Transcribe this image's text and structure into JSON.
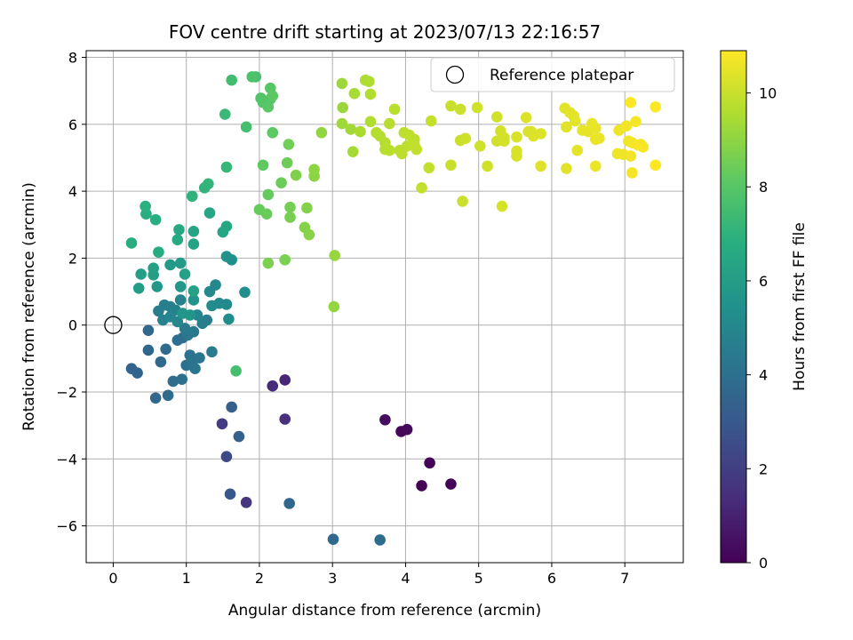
{
  "chart_data": {
    "type": "scatter",
    "title": "FOV centre drift starting at 2023/07/13 22:16:57",
    "xlabel": "Angular distance from reference (arcmin)",
    "ylabel": "Rotation from reference (arcmin)",
    "xlim": [
      -0.37,
      7.8
    ],
    "ylim": [
      -7.1,
      8.2
    ],
    "xticks": [
      0,
      1,
      2,
      3,
      4,
      5,
      6,
      7
    ],
    "yticks": [
      -6,
      -4,
      -2,
      0,
      2,
      4,
      6,
      8
    ],
    "grid": true,
    "legend": {
      "placement": "top-right",
      "entries": [
        "Reference platepar"
      ]
    },
    "reference_point": {
      "x": 0,
      "y": 0
    },
    "colorbar": {
      "label": "Hours from first FF file",
      "range": [
        0,
        10.9
      ],
      "ticks": [
        0,
        2,
        4,
        6,
        8,
        10
      ],
      "colormap": "viridis"
    },
    "points": [
      {
        "x": 4.22,
        "y": -4.8,
        "c": 0.0
      },
      {
        "x": 4.62,
        "y": -4.75,
        "c": 0.05
      },
      {
        "x": 4.33,
        "y": -4.12,
        "c": 0.1
      },
      {
        "x": 3.94,
        "y": -3.18,
        "c": 0.2
      },
      {
        "x": 4.02,
        "y": -3.12,
        "c": 0.25
      },
      {
        "x": 3.72,
        "y": -2.83,
        "c": 0.35
      },
      {
        "x": 2.35,
        "y": -1.64,
        "c": 1.2
      },
      {
        "x": 2.18,
        "y": -1.82,
        "c": 1.3
      },
      {
        "x": 2.35,
        "y": -2.81,
        "c": 1.5
      },
      {
        "x": 1.82,
        "y": -5.3,
        "c": 1.7
      },
      {
        "x": 1.49,
        "y": -2.95,
        "c": 1.9
      },
      {
        "x": 1.55,
        "y": -3.93,
        "c": 2.4
      },
      {
        "x": 1.6,
        "y": -5.05,
        "c": 3.0
      },
      {
        "x": 1.62,
        "y": -2.45,
        "c": 3.3
      },
      {
        "x": 1.72,
        "y": -3.33,
        "c": 3.4
      },
      {
        "x": 2.41,
        "y": -5.33,
        "c": 3.6
      },
      {
        "x": 3.01,
        "y": -6.4,
        "c": 3.7
      },
      {
        "x": 3.65,
        "y": -6.42,
        "c": 3.8
      },
      {
        "x": 0.25,
        "y": -1.3,
        "c": 3.5
      },
      {
        "x": 0.33,
        "y": -1.43,
        "c": 3.55
      },
      {
        "x": 0.48,
        "y": -0.75,
        "c": 3.6
      },
      {
        "x": 0.48,
        "y": -0.16,
        "c": 3.6
      },
      {
        "x": 0.58,
        "y": -2.18,
        "c": 3.65
      },
      {
        "x": 0.65,
        "y": -1.1,
        "c": 3.7
      },
      {
        "x": 0.72,
        "y": -0.72,
        "c": 3.75
      },
      {
        "x": 0.75,
        "y": -2.1,
        "c": 3.8
      },
      {
        "x": 0.82,
        "y": -1.68,
        "c": 3.85
      },
      {
        "x": 0.88,
        "y": -0.45,
        "c": 3.9
      },
      {
        "x": 0.95,
        "y": -0.38,
        "c": 3.95
      },
      {
        "x": 0.94,
        "y": -1.62,
        "c": 4.0
      },
      {
        "x": 1.0,
        "y": -1.2,
        "c": 4.05
      },
      {
        "x": 1.05,
        "y": -0.9,
        "c": 4.1
      },
      {
        "x": 1.08,
        "y": -1.15,
        "c": 4.15
      },
      {
        "x": 1.12,
        "y": -1.3,
        "c": 4.2
      },
      {
        "x": 1.18,
        "y": -0.98,
        "c": 4.25
      },
      {
        "x": 1.02,
        "y": -0.3,
        "c": 4.3
      },
      {
        "x": 1.1,
        "y": -0.2,
        "c": 4.4
      },
      {
        "x": 0.98,
        "y": -0.1,
        "c": 4.45
      },
      {
        "x": 1.35,
        "y": -0.8,
        "c": 4.5
      },
      {
        "x": 1.22,
        "y": 0.05,
        "c": 4.55
      },
      {
        "x": 1.28,
        "y": 0.15,
        "c": 4.6
      },
      {
        "x": 0.62,
        "y": 0.42,
        "c": 4.6
      },
      {
        "x": 0.7,
        "y": 0.6,
        "c": 4.65
      },
      {
        "x": 0.78,
        "y": 0.55,
        "c": 4.7
      },
      {
        "x": 0.85,
        "y": 0.45,
        "c": 4.75
      },
      {
        "x": 0.92,
        "y": 0.75,
        "c": 4.8
      },
      {
        "x": 0.68,
        "y": 0.15,
        "c": 4.85
      },
      {
        "x": 0.78,
        "y": 0.25,
        "c": 4.9
      },
      {
        "x": 0.88,
        "y": 0.1,
        "c": 4.95
      },
      {
        "x": 1.15,
        "y": 0.3,
        "c": 5.0
      },
      {
        "x": 1.32,
        "y": 1.0,
        "c": 5.05
      },
      {
        "x": 1.4,
        "y": 1.2,
        "c": 5.1
      },
      {
        "x": 1.55,
        "y": 0.62,
        "c": 5.15
      },
      {
        "x": 1.45,
        "y": 0.65,
        "c": 5.2
      },
      {
        "x": 1.35,
        "y": 0.58,
        "c": 5.25
      },
      {
        "x": 1.58,
        "y": 0.18,
        "c": 5.3
      },
      {
        "x": 1.8,
        "y": 0.98,
        "c": 5.35
      },
      {
        "x": 1.62,
        "y": 1.95,
        "c": 5.4
      },
      {
        "x": 1.55,
        "y": 2.05,
        "c": 5.5
      },
      {
        "x": 1.1,
        "y": 0.75,
        "c": 5.6
      },
      {
        "x": 1.05,
        "y": 0.3,
        "c": 5.65
      },
      {
        "x": 0.95,
        "y": 0.35,
        "c": 5.7
      },
      {
        "x": 0.92,
        "y": 1.15,
        "c": 5.75
      },
      {
        "x": 0.6,
        "y": 1.15,
        "c": 5.8
      },
      {
        "x": 0.78,
        "y": 1.8,
        "c": 5.85
      },
      {
        "x": 0.92,
        "y": 1.85,
        "c": 5.9
      },
      {
        "x": 0.35,
        "y": 1.1,
        "c": 6.0
      },
      {
        "x": 0.38,
        "y": 1.52,
        "c": 6.05
      },
      {
        "x": 0.55,
        "y": 1.5,
        "c": 6.1
      },
      {
        "x": 0.55,
        "y": 1.7,
        "c": 6.15
      },
      {
        "x": 0.98,
        "y": 1.52,
        "c": 6.2
      },
      {
        "x": 1.1,
        "y": 1.02,
        "c": 6.25
      },
      {
        "x": 1.1,
        "y": 2.42,
        "c": 6.3
      },
      {
        "x": 1.1,
        "y": 2.8,
        "c": 6.35
      },
      {
        "x": 1.32,
        "y": 3.35,
        "c": 6.4
      },
      {
        "x": 1.5,
        "y": 2.78,
        "c": 6.45
      },
      {
        "x": 1.55,
        "y": 2.95,
        "c": 6.5
      },
      {
        "x": 0.9,
        "y": 2.85,
        "c": 6.55
      },
      {
        "x": 0.88,
        "y": 2.55,
        "c": 6.6
      },
      {
        "x": 0.62,
        "y": 2.18,
        "c": 6.7
      },
      {
        "x": 0.25,
        "y": 2.45,
        "c": 6.75
      },
      {
        "x": 0.45,
        "y": 3.32,
        "c": 6.8
      },
      {
        "x": 0.58,
        "y": 3.15,
        "c": 6.85
      },
      {
        "x": 0.44,
        "y": 3.55,
        "c": 6.9
      },
      {
        "x": 1.08,
        "y": 3.85,
        "c": 7.0
      },
      {
        "x": 1.25,
        "y": 4.1,
        "c": 7.05
      },
      {
        "x": 1.3,
        "y": 4.22,
        "c": 7.1
      },
      {
        "x": 1.55,
        "y": 4.72,
        "c": 7.2
      },
      {
        "x": 1.53,
        "y": 6.3,
        "c": 7.3
      },
      {
        "x": 1.62,
        "y": 7.32,
        "c": 7.5
      },
      {
        "x": 1.68,
        "y": -1.37,
        "c": 7.6
      },
      {
        "x": 1.82,
        "y": 5.92,
        "c": 7.6
      },
      {
        "x": 1.95,
        "y": 7.42,
        "c": 7.7
      },
      {
        "x": 1.9,
        "y": 7.42,
        "c": 7.75
      },
      {
        "x": 2.02,
        "y": 6.78,
        "c": 7.85
      },
      {
        "x": 2.05,
        "y": 6.65,
        "c": 7.9
      },
      {
        "x": 2.15,
        "y": 6.75,
        "c": 7.95
      },
      {
        "x": 2.15,
        "y": 7.08,
        "c": 8.0
      },
      {
        "x": 2.12,
        "y": 6.52,
        "c": 8.05
      },
      {
        "x": 2.18,
        "y": 6.85,
        "c": 8.1
      },
      {
        "x": 2.18,
        "y": 5.75,
        "c": 8.15
      },
      {
        "x": 2.05,
        "y": 4.78,
        "c": 8.2
      },
      {
        "x": 2.12,
        "y": 3.9,
        "c": 8.25
      },
      {
        "x": 2.0,
        "y": 3.45,
        "c": 8.3
      },
      {
        "x": 2.1,
        "y": 3.32,
        "c": 8.35
      },
      {
        "x": 2.3,
        "y": 4.25,
        "c": 8.4
      },
      {
        "x": 2.38,
        "y": 4.85,
        "c": 8.45
      },
      {
        "x": 2.4,
        "y": 5.4,
        "c": 8.5
      },
      {
        "x": 2.42,
        "y": 3.52,
        "c": 8.55
      },
      {
        "x": 2.42,
        "y": 3.22,
        "c": 8.6
      },
      {
        "x": 2.35,
        "y": 1.95,
        "c": 8.65
      },
      {
        "x": 2.12,
        "y": 1.85,
        "c": 8.7
      },
      {
        "x": 2.5,
        "y": 4.48,
        "c": 8.75
      },
      {
        "x": 2.65,
        "y": 3.5,
        "c": 8.8
      },
      {
        "x": 2.62,
        "y": 2.92,
        "c": 8.85
      },
      {
        "x": 2.68,
        "y": 2.7,
        "c": 8.9
      },
      {
        "x": 2.75,
        "y": 4.45,
        "c": 8.95
      },
      {
        "x": 2.75,
        "y": 4.65,
        "c": 9.0
      },
      {
        "x": 2.85,
        "y": 5.75,
        "c": 9.05
      },
      {
        "x": 3.02,
        "y": 0.55,
        "c": 9.1
      },
      {
        "x": 3.03,
        "y": 2.08,
        "c": 9.15
      },
      {
        "x": 3.14,
        "y": 6.5,
        "c": 9.2
      },
      {
        "x": 3.13,
        "y": 7.22,
        "c": 9.25
      },
      {
        "x": 3.13,
        "y": 6.02,
        "c": 9.3
      },
      {
        "x": 3.25,
        "y": 5.85,
        "c": 9.35
      },
      {
        "x": 3.28,
        "y": 5.18,
        "c": 9.4
      },
      {
        "x": 3.3,
        "y": 6.92,
        "c": 9.45
      },
      {
        "x": 3.38,
        "y": 5.78,
        "c": 9.5
      },
      {
        "x": 3.45,
        "y": 7.32,
        "c": 9.55
      },
      {
        "x": 3.5,
        "y": 7.28,
        "c": 9.55
      },
      {
        "x": 3.52,
        "y": 6.9,
        "c": 9.6
      },
      {
        "x": 3.52,
        "y": 6.08,
        "c": 9.6
      },
      {
        "x": 3.6,
        "y": 5.75,
        "c": 9.65
      },
      {
        "x": 3.65,
        "y": 5.65,
        "c": 9.65
      },
      {
        "x": 3.72,
        "y": 5.45,
        "c": 9.7
      },
      {
        "x": 3.72,
        "y": 5.25,
        "c": 9.7
      },
      {
        "x": 3.78,
        "y": 6.02,
        "c": 9.72
      },
      {
        "x": 3.78,
        "y": 5.22,
        "c": 9.75
      },
      {
        "x": 3.85,
        "y": 6.45,
        "c": 9.75
      },
      {
        "x": 3.92,
        "y": 5.22,
        "c": 9.78
      },
      {
        "x": 3.95,
        "y": 5.12,
        "c": 9.8
      },
      {
        "x": 3.98,
        "y": 5.75,
        "c": 9.8
      },
      {
        "x": 4.02,
        "y": 5.35,
        "c": 9.82
      },
      {
        "x": 4.05,
        "y": 5.68,
        "c": 9.85
      },
      {
        "x": 4.12,
        "y": 5.55,
        "c": 9.85
      },
      {
        "x": 4.12,
        "y": 5.38,
        "c": 9.88
      },
      {
        "x": 4.15,
        "y": 5.25,
        "c": 9.9
      },
      {
        "x": 4.22,
        "y": 4.1,
        "c": 9.9
      },
      {
        "x": 4.32,
        "y": 4.7,
        "c": 9.92
      },
      {
        "x": 4.35,
        "y": 6.1,
        "c": 9.95
      },
      {
        "x": 4.62,
        "y": 4.78,
        "c": 10.0
      },
      {
        "x": 4.62,
        "y": 6.55,
        "c": 10.0
      },
      {
        "x": 4.75,
        "y": 6.45,
        "c": 10.02
      },
      {
        "x": 4.75,
        "y": 5.52,
        "c": 10.05
      },
      {
        "x": 4.78,
        "y": 3.7,
        "c": 10.05
      },
      {
        "x": 4.82,
        "y": 5.58,
        "c": 10.08
      },
      {
        "x": 4.98,
        "y": 6.5,
        "c": 10.1
      },
      {
        "x": 5.02,
        "y": 5.35,
        "c": 10.1
      },
      {
        "x": 5.12,
        "y": 4.75,
        "c": 10.12
      },
      {
        "x": 5.25,
        "y": 6.22,
        "c": 10.15
      },
      {
        "x": 5.25,
        "y": 5.5,
        "c": 10.15
      },
      {
        "x": 5.3,
        "y": 5.8,
        "c": 10.18
      },
      {
        "x": 5.35,
        "y": 5.6,
        "c": 10.2
      },
      {
        "x": 5.35,
        "y": 5.5,
        "c": 10.2
      },
      {
        "x": 5.32,
        "y": 3.55,
        "c": 10.22
      },
      {
        "x": 5.52,
        "y": 5.62,
        "c": 10.25
      },
      {
        "x": 5.52,
        "y": 5.2,
        "c": 10.25
      },
      {
        "x": 5.52,
        "y": 5.05,
        "c": 10.28
      },
      {
        "x": 5.65,
        "y": 6.2,
        "c": 10.3
      },
      {
        "x": 5.68,
        "y": 5.78,
        "c": 10.3
      },
      {
        "x": 5.72,
        "y": 5.78,
        "c": 10.32
      },
      {
        "x": 5.75,
        "y": 5.65,
        "c": 10.35
      },
      {
        "x": 5.85,
        "y": 5.72,
        "c": 10.35
      },
      {
        "x": 5.85,
        "y": 4.75,
        "c": 10.38
      },
      {
        "x": 6.18,
        "y": 6.48,
        "c": 10.4
      },
      {
        "x": 6.2,
        "y": 5.92,
        "c": 10.4
      },
      {
        "x": 6.2,
        "y": 4.68,
        "c": 10.42
      },
      {
        "x": 6.25,
        "y": 6.35,
        "c": 10.45
      },
      {
        "x": 6.3,
        "y": 6.25,
        "c": 10.45
      },
      {
        "x": 6.32,
        "y": 6.1,
        "c": 10.48
      },
      {
        "x": 6.35,
        "y": 5.22,
        "c": 10.5
      },
      {
        "x": 6.42,
        "y": 5.82,
        "c": 10.5
      },
      {
        "x": 6.5,
        "y": 5.78,
        "c": 10.52
      },
      {
        "x": 6.55,
        "y": 6.02,
        "c": 10.55
      },
      {
        "x": 6.6,
        "y": 5.88,
        "c": 10.55
      },
      {
        "x": 6.6,
        "y": 5.55,
        "c": 10.58
      },
      {
        "x": 6.6,
        "y": 4.75,
        "c": 10.6
      },
      {
        "x": 6.65,
        "y": 5.58,
        "c": 10.6
      },
      {
        "x": 6.9,
        "y": 5.12,
        "c": 10.62
      },
      {
        "x": 6.92,
        "y": 5.82,
        "c": 10.65
      },
      {
        "x": 6.98,
        "y": 5.1,
        "c": 10.65
      },
      {
        "x": 7.02,
        "y": 5.95,
        "c": 10.68
      },
      {
        "x": 7.05,
        "y": 5.5,
        "c": 10.7
      },
      {
        "x": 7.08,
        "y": 5.05,
        "c": 10.7
      },
      {
        "x": 7.1,
        "y": 5.45,
        "c": 10.72
      },
      {
        "x": 7.1,
        "y": 4.55,
        "c": 10.75
      },
      {
        "x": 7.15,
        "y": 6.08,
        "c": 10.75
      },
      {
        "x": 7.18,
        "y": 5.38,
        "c": 10.78
      },
      {
        "x": 7.22,
        "y": 5.4,
        "c": 10.8
      },
      {
        "x": 7.25,
        "y": 5.32,
        "c": 10.8
      },
      {
        "x": 7.08,
        "y": 6.65,
        "c": 10.85
      },
      {
        "x": 7.42,
        "y": 6.52,
        "c": 10.85
      },
      {
        "x": 7.42,
        "y": 4.78,
        "c": 10.9
      }
    ]
  }
}
